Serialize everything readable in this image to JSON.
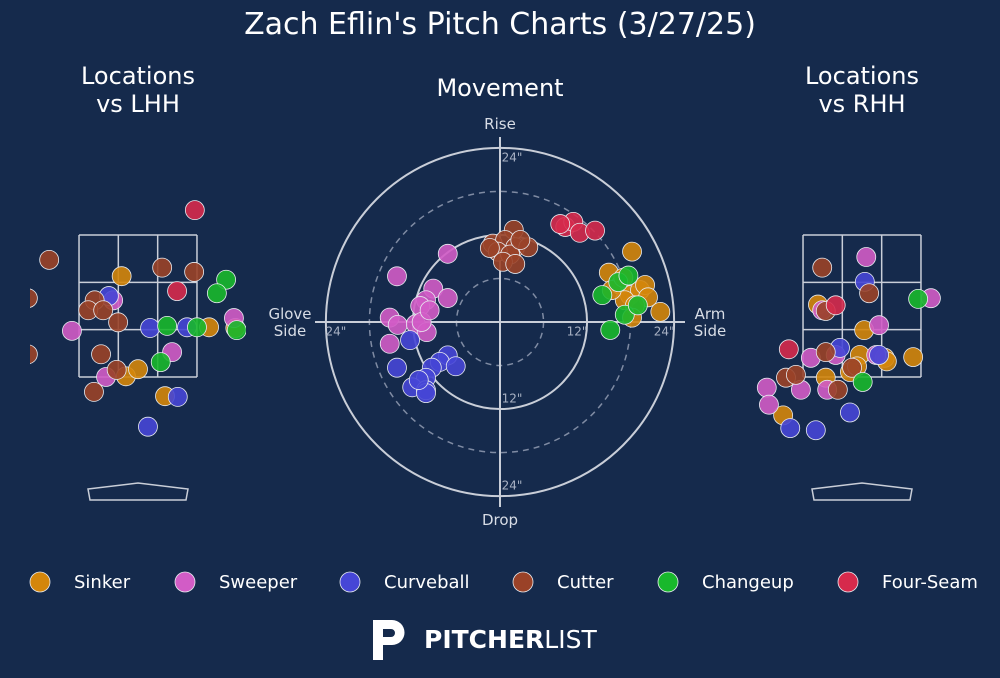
{
  "title": "Zach Eflin's Pitch Charts (3/27/25)",
  "pitch_types": [
    {
      "name": "Sinker",
      "color": "#d4860b"
    },
    {
      "name": "Sweeper",
      "color": "#d25cc6"
    },
    {
      "name": "Curveball",
      "color": "#4646d6"
    },
    {
      "name": "Cutter",
      "color": "#9a4228"
    },
    {
      "name": "Changeup",
      "color": "#18b82c"
    },
    {
      "name": "Four-Seam",
      "color": "#d62a4c"
    }
  ],
  "chart_data": [
    {
      "type": "scatter",
      "title": "Locations\nvs LHH",
      "xlim": [
        -1.52,
        1.52
      ],
      "ylim": [
        -0.3,
        4.1
      ],
      "series": [
        {
          "x": [
            -0.23,
            1.0,
            1.37,
            -0.17,
            0,
            0.38
          ],
          "values": [
            2.92,
            2.2,
            2.19,
            1.51,
            1.61,
            1.23
          ]
        },
        {
          "x": [
            -0.35,
            -0.93,
            1.35,
            0.48,
            -0.45
          ],
          "values": [
            2.58,
            2.15,
            2.33,
            1.85,
            1.5
          ]
        },
        {
          "x": [
            -0.41,
            0.17,
            0.69,
            0.56,
            0.14
          ],
          "values": [
            2.64,
            2.19,
            2.2,
            1.22,
            0.8
          ]
        },
        {
          "x": [
            -1.25,
            -1.55,
            -1.55,
            0.34,
            0.79,
            -0.61,
            -0.7,
            -0.49,
            -0.28,
            -0.52,
            -0.3,
            -0.62
          ],
          "values": [
            3.15,
            2.61,
            1.82,
            3.04,
            2.98,
            2.58,
            2.44,
            2.44,
            2.27,
            1.82,
            1.6,
            1.29
          ]
        },
        {
          "x": [
            1.24,
            1.11,
            0.41,
            0.83,
            0.32,
            1.39
          ],
          "values": [
            2.87,
            2.68,
            2.22,
            2.2,
            1.71,
            2.16
          ]
        },
        {
          "x": [
            0.8,
            0.55
          ],
          "values": [
            3.85,
            2.71
          ]
        }
      ]
    },
    {
      "type": "scatter",
      "title": "Movement",
      "xlabel_left": "Glove\nSide",
      "xlabel_right": "Arm\nSide",
      "ylabel_top": "Rise",
      "ylabel_bottom": "Drop",
      "xlim": [
        -25.5,
        25.5
      ],
      "ylim": [
        -25.5,
        25.5
      ],
      "xticks": [
        {
          "value": -24,
          "label": "24\""
        },
        {
          "value": 12,
          "label": "12\""
        },
        {
          "value": 24,
          "label": "24\""
        }
      ],
      "yticks": [
        {
          "value": 24,
          "label": "24\""
        },
        {
          "value": -12,
          "label": "12\""
        },
        {
          "value": -24,
          "label": "24\""
        }
      ],
      "series": [
        {
          "x": [
            18.2,
            15.0,
            16.6,
            17.9,
            19.3,
            20.0,
            20.4,
            17.2,
            18.6,
            22.1,
            18.2,
            15.4,
            17.0
          ],
          "values": [
            9.7,
            6.8,
            5.1,
            3.7,
            4.4,
            5.1,
            3.4,
            3.0,
            2.3,
            1.4,
            0.6,
            4.4,
            6.1
          ]
        },
        {
          "x": [
            -7.2,
            -14.2,
            -9.2,
            -10.2,
            -11.0,
            -7.2,
            -15.2,
            -14.1,
            -11.6,
            -10.1,
            -15.2,
            -10.8,
            -9.7
          ],
          "values": [
            9.4,
            6.3,
            4.6,
            3.0,
            2.2,
            3.3,
            0.6,
            -0.4,
            -0.3,
            -1.4,
            -3.0,
            0,
            1.6
          ]
        },
        {
          "x": [
            -12.4,
            -14.2,
            -7.2,
            -8.3,
            -9.4,
            -6.1,
            -10.2,
            -12.1,
            -10.2,
            -10.2,
            -11.2
          ],
          "values": [
            -2.5,
            -6.3,
            -4.6,
            -5.5,
            -6.3,
            -6.1,
            -7.7,
            -9.0,
            -9.4,
            -9.8,
            -8.0
          ]
        },
        {
          "x": [
            1.9,
            -1.0,
            0.7,
            2.1,
            3.9,
            -0.3,
            1.4,
            0.4,
            2.1,
            -1.4,
            2.8
          ],
          "values": [
            12.7,
            10.8,
            11.3,
            10.3,
            10.3,
            9.7,
            9.3,
            8.3,
            8.0,
            10.2,
            11.3
          ]
        },
        {
          "x": [
            14.1,
            15.2,
            17.2,
            16.3,
            17.7,
            19.0
          ],
          "values": [
            3.7,
            -1.1,
            1.0,
            5.5,
            6.4,
            2.3
          ]
        },
        {
          "x": [
            9.0,
            10.1,
            11.0,
            13.1,
            8.3
          ],
          "values": [
            13.1,
            13.8,
            12.3,
            12.6,
            13.5
          ]
        }
      ]
    },
    {
      "type": "scatter",
      "title": "Locations\nvs RHH",
      "xlim": [
        -1.52,
        1.52
      ],
      "ylim": [
        -0.3,
        4.1
      ],
      "series": [
        {
          "x": [
            -0.62,
            0.03,
            -0.03,
            -0.17,
            -0.07,
            -0.51,
            0.32,
            0.35,
            0.72,
            -1.11
          ],
          "values": [
            2.52,
            2.16,
            1.81,
            1.57,
            1.65,
            1.49,
            1.77,
            1.72,
            1.78,
            0.96
          ]
        },
        {
          "x": [
            0.06,
            0.97,
            0.24,
            -0.72,
            -1.34,
            -1.31,
            -0.86,
            -0.49,
            -0.56,
            -0.37,
            0.2
          ],
          "values": [
            3.19,
            2.61,
            2.23,
            1.77,
            1.35,
            1.11,
            1.32,
            1.32,
            2.44,
            1.81,
            1.81
          ]
        },
        {
          "x": [
            0.04,
            -0.31,
            0.24,
            -0.17,
            -1.01,
            -0.65
          ],
          "values": [
            2.84,
            1.91,
            1.81,
            1.0,
            0.78,
            0.75
          ]
        },
        {
          "x": [
            -0.56,
            0.1,
            -0.51,
            -0.51,
            -1.07,
            -0.93,
            -0.34,
            -0.14
          ],
          "values": [
            3.04,
            2.68,
            2.43,
            1.85,
            1.49,
            1.53,
            1.32,
            1.63
          ]
        },
        {
          "x": [
            0.79,
            0.01
          ],
          "values": [
            2.6,
            1.43
          ]
        },
        {
          "x": [
            -0.37,
            -1.03
          ],
          "values": [
            2.51,
            1.89
          ]
        }
      ]
    }
  ],
  "logo": [
    "PITCHER",
    "LIST"
  ]
}
